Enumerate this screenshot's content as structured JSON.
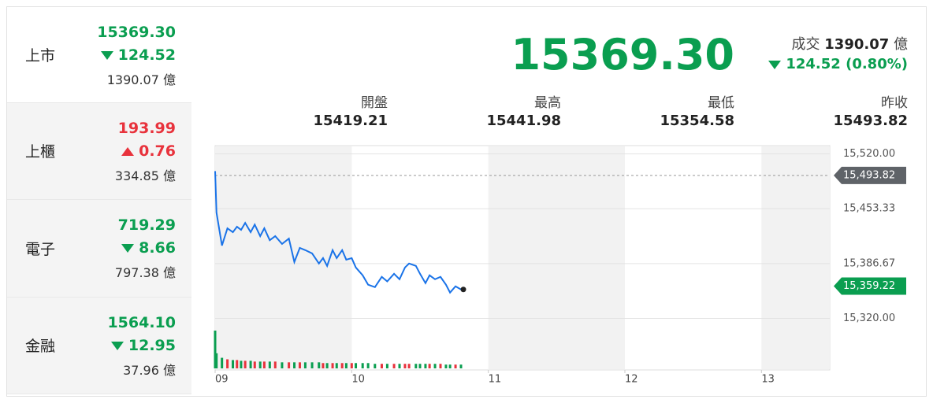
{
  "sidebar": [
    {
      "name": "上市",
      "price": "15369.30",
      "change": "124.52",
      "direction": "down",
      "volume": "1390.07 億"
    },
    {
      "name": "上櫃",
      "price": "193.99",
      "change": "0.76",
      "direction": "up",
      "volume": "334.85 億"
    },
    {
      "name": "電子",
      "price": "719.29",
      "change": "8.66",
      "direction": "down",
      "volume": "797.38 億"
    },
    {
      "name": "金融",
      "price": "1564.10",
      "change": "12.95",
      "direction": "down",
      "volume": "37.96 億"
    }
  ],
  "header": {
    "price": "15369.30",
    "volume_label": "成交",
    "volume": "1390.07",
    "volume_unit": "億",
    "change": "124.52 (0.80%)",
    "direction": "down"
  },
  "stats": [
    {
      "label": "開盤",
      "value": "15419.21"
    },
    {
      "label": "最高",
      "value": "15441.98"
    },
    {
      "label": "最低",
      "value": "15354.58"
    },
    {
      "label": "昨收",
      "value": "15493.82"
    }
  ],
  "chart_data": {
    "type": "line",
    "color": "#1a73e8",
    "shaded": true,
    "x": [
      9.0,
      9.01,
      9.05,
      9.09,
      9.13,
      9.16,
      9.19,
      9.22,
      9.26,
      9.29,
      9.33,
      9.36,
      9.4,
      9.44,
      9.49,
      9.54,
      9.58,
      9.62,
      9.66,
      9.71,
      9.76,
      9.79,
      9.82,
      9.86,
      9.89,
      9.93,
      9.96,
      10.0,
      10.03,
      10.08,
      10.12,
      10.17,
      10.22,
      10.26,
      10.31,
      10.35,
      10.39,
      10.42,
      10.47,
      10.5,
      10.54,
      10.57,
      10.61,
      10.65,
      10.69,
      10.72,
      10.76,
      10.8
    ],
    "values": [
      15499,
      15448.6,
      15408.6,
      15429.5,
      15424.8,
      15431.4,
      15427.6,
      15436,
      15424.8,
      15434,
      15420,
      15429.5,
      15415,
      15420,
      15410.5,
      15417,
      15388.6,
      15405.7,
      15403,
      15399,
      15386.7,
      15393.3,
      15383.8,
      15403,
      15393.3,
      15403,
      15391.4,
      15393.3,
      15381.9,
      15372.4,
      15361,
      15358,
      15370.5,
      15365,
      15374.3,
      15367.6,
      15381.9,
      15386.7,
      15383.8,
      15374.3,
      15362.9,
      15372.4,
      15367.6,
      15370.5,
      15361,
      15351.4,
      15359,
      15355.2
    ],
    "volume": [
      50,
      20,
      14,
      12,
      11,
      11,
      10,
      10,
      10,
      9,
      9,
      9,
      9,
      9,
      8,
      8,
      8,
      8,
      8,
      8,
      8,
      7,
      7,
      7,
      7,
      7,
      7,
      7,
      7,
      7,
      7,
      6,
      6,
      6,
      6,
      6,
      6,
      6,
      6,
      6,
      6,
      6,
      6,
      6,
      5,
      5,
      5,
      5
    ],
    "xlim": [
      9,
      13.5
    ],
    "xticks": [
      {
        "value": 9,
        "label": "09"
      },
      10,
      11,
      12,
      13
    ],
    "ylim": [
      15310,
      15530
    ],
    "yticks": [
      {
        "value": 15520,
        "label": "15,520.00"
      },
      {
        "value": 15453.33,
        "label": "15,453.33"
      },
      {
        "value": 15386.67,
        "label": "15,386.67"
      },
      {
        "value": 15320,
        "label": "15,320.00"
      }
    ],
    "reference": {
      "value": 15493.82,
      "label": "15,493.82"
    },
    "last": {
      "value": 15359.22,
      "label": "15,359.22"
    }
  }
}
